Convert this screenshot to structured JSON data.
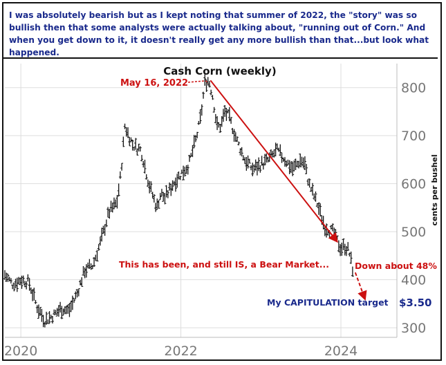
{
  "header": {
    "text": "I was absolutely bearish but as I kept noting that summer of 2022, the \"story\" was so bullish then that some analysts were actually talking about, \"running out of Corn.\" And when you get down to it, it doesn't really get any more bullish than that...but look what happened."
  },
  "chart_data": {
    "type": "ohlc",
    "title": "Cash Corn (weekly)",
    "ylabel": "cents per bushel",
    "xlabel": "",
    "xlim": [
      2019.8,
      2024.7
    ],
    "ylim": [
      280,
      850
    ],
    "x_ticks": [
      "2020",
      "2022",
      "2024"
    ],
    "x_tick_values": [
      2020,
      2022,
      2024
    ],
    "y_ticks": [
      "300",
      "400",
      "500",
      "600",
      "700",
      "800"
    ],
    "y_tick_values": [
      300,
      400,
      500,
      600,
      700,
      800
    ],
    "grid": true,
    "axis_side": "right",
    "bar_color": "#111111",
    "annotation_color": "#cc1111",
    "target_color": "#1a2a8c",
    "series": [
      {
        "x": [
          2019.8,
          2019.9,
          2020.0,
          2020.1,
          2020.2,
          2020.3,
          2020.4,
          2020.5,
          2020.6,
          2020.7,
          2020.8,
          2020.9,
          2021.0,
          2021.1,
          2021.2,
          2021.25,
          2021.3,
          2021.35,
          2021.4,
          2021.5,
          2021.6,
          2021.7,
          2021.75,
          2021.8,
          2021.9,
          2022.0,
          2022.1,
          2022.2,
          2022.25,
          2022.3,
          2022.35,
          2022.4,
          2022.45,
          2022.5,
          2022.55,
          2022.6,
          2022.7,
          2022.8,
          2022.9,
          2023.0,
          2023.1,
          2023.2,
          2023.3,
          2023.4,
          2023.45,
          2023.5,
          2023.55,
          2023.6,
          2023.7,
          2023.8,
          2023.9,
          2024.0,
          2024.05,
          2024.1,
          2024.15
        ],
        "values": [
          410,
          390,
          400,
          395,
          345,
          315,
          325,
          340,
          335,
          370,
          420,
          430,
          480,
          540,
          560,
          620,
          720,
          700,
          680,
          670,
          600,
          550,
          580,
          570,
          600,
          620,
          640,
          700,
          740,
          810,
          815,
          780,
          720,
          720,
          750,
          740,
          690,
          650,
          630,
          640,
          650,
          670,
          650,
          630,
          640,
          650,
          640,
          600,
          560,
          510,
          500,
          465,
          470,
          460,
          420
        ]
      }
    ],
    "annotations": {
      "peak_label": "May 16, 2022",
      "peak_x": 2022.37,
      "peak_y": 835,
      "bear_label": "This has been, and still IS, a Bear Market...",
      "bear_x": 2021.2,
      "bear_y": 420,
      "down_label": "Down about 48%",
      "down_x": 2024.2,
      "down_y": 420,
      "target_label": "My CAPITULATION target",
      "target_price": "$3.50",
      "target_x": 2024.3,
      "target_y": 350,
      "trend_start": [
        2022.37,
        815
      ],
      "trend_end": [
        2023.95,
        480
      ],
      "arrow_start": [
        2024.18,
        415
      ],
      "arrow_end": [
        2024.3,
        360
      ]
    }
  }
}
